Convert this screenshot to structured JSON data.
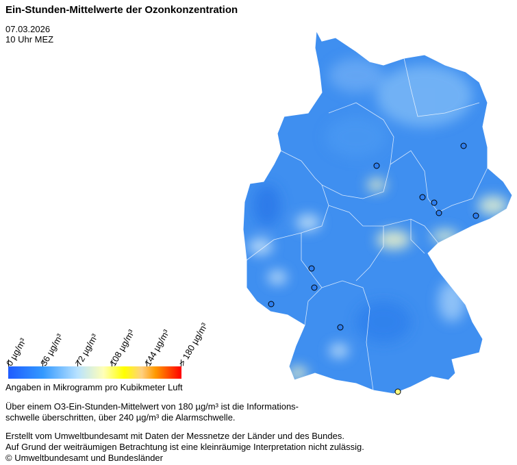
{
  "title": "Ein-Stunden-Mittelwerte der Ozonkonzentration",
  "date": "07.03.2026",
  "time": "10 Uhr MEZ",
  "legend": {
    "ticks": [
      "0  µg/m³",
      "36  µg/m³",
      "72  µg/m³",
      "108  µg/m³",
      "144  µg/m³",
      "> 180  µg/m³"
    ],
    "colors": [
      "#1e5cff",
      "#3399ff",
      "#b8e2ff",
      "#ffffb8",
      "#ffff00",
      "#ff9900",
      "#ff0000"
    ],
    "unit_label": "Angaben in Mikrogramm pro Kubikmeter Luft"
  },
  "notes": {
    "threshold_line1": "Über einem O3-Ein-Stunden-Mittelwert von 180 µg/m³ ist die Informations-",
    "threshold_line2": "schwelle überschritten, über 240 µg/m³ die Alarmschwelle.",
    "credit_line1": "Erstellt vom Umweltbundesamt mit Daten der Messnetze der Länder und des Bundes.",
    "credit_line2": "Auf Grund der weiträumigen Betrachtung ist eine kleinräumige Interpretation nicht zulässig.",
    "copyright": "© Umweltbundesamt und Bundesländer"
  },
  "map": {
    "base_color": "#3f8ff0",
    "station_colors": {
      "blue": "#2e7ff0",
      "yellow": "#ffff80"
    }
  }
}
